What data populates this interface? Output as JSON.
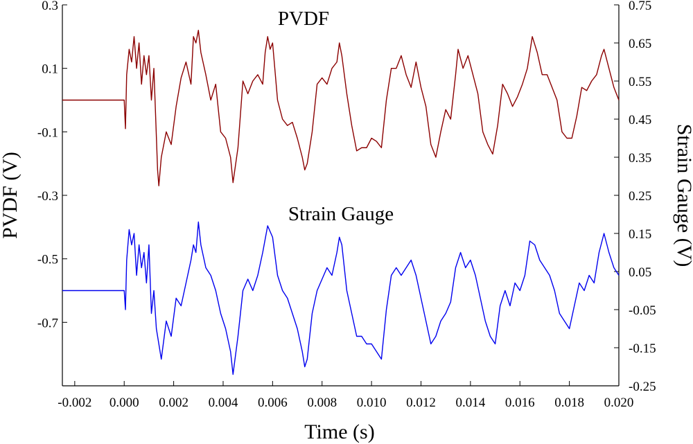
{
  "chart_data": {
    "type": "line",
    "title": "",
    "xlabel": "Time (s)",
    "ylabel_left": "PVDF (V)",
    "ylabel_right": "Strain Gauge (V)",
    "xlim": [
      -0.0025,
      0.02
    ],
    "ylim_left": [
      -0.9,
      0.3
    ],
    "ylim_right": [
      -0.25,
      0.75
    ],
    "x_ticks": [
      -0.002,
      0.0,
      0.002,
      0.004,
      0.006,
      0.008,
      0.01,
      0.012,
      0.014,
      0.016,
      0.018,
      0.02
    ],
    "x_tick_labels": [
      "-0.002",
      "0.000",
      "0.002",
      "0.004",
      "0.006",
      "0.008",
      "0.010",
      "0.012",
      "0.014",
      "0.016",
      "0.018",
      "0.020"
    ],
    "y_left_ticks": [
      0.3,
      0.1,
      -0.1,
      -0.3,
      -0.5,
      -0.7
    ],
    "y_left_tick_labels": [
      "0.3",
      "0.1",
      "-0.1",
      "-0.3",
      "-0.5",
      "-0.7"
    ],
    "y_right_ticks": [
      0.75,
      0.65,
      0.55,
      0.45,
      0.35,
      0.25,
      0.15,
      0.05,
      -0.05,
      -0.15,
      -0.25
    ],
    "y_right_tick_labels": [
      "0.75",
      "0.65",
      "0.55",
      "0.45",
      "0.35",
      "0.25",
      "0.15",
      "0.05",
      "-0.05",
      "-0.15",
      "-0.25"
    ],
    "annotations": [
      "PVDF",
      "Strain Gauge"
    ],
    "series": [
      {
        "name": "PVDF",
        "axis": "left",
        "color": "#8b0000",
        "points": [
          [
            -0.0025,
            0.0
          ],
          [
            0.0,
            0.0
          ],
          [
            5e-05,
            -0.09
          ],
          [
            0.0001,
            0.08
          ],
          [
            0.0002,
            0.16
          ],
          [
            0.0003,
            0.12
          ],
          [
            0.0004,
            0.2
          ],
          [
            0.0005,
            0.1
          ],
          [
            0.0006,
            0.18
          ],
          [
            0.0007,
            0.05
          ],
          [
            0.0008,
            0.14
          ],
          [
            0.0009,
            0.08
          ],
          [
            0.001,
            0.14
          ],
          [
            0.0011,
            0.0
          ],
          [
            0.0012,
            0.1
          ],
          [
            0.00135,
            -0.22
          ],
          [
            0.0014,
            -0.27
          ],
          [
            0.0015,
            -0.18
          ],
          [
            0.0017,
            -0.1
          ],
          [
            0.0019,
            -0.14
          ],
          [
            0.0021,
            -0.02
          ],
          [
            0.0023,
            0.07
          ],
          [
            0.0025,
            0.12
          ],
          [
            0.0027,
            0.05
          ],
          [
            0.0028,
            0.2
          ],
          [
            0.0029,
            0.18
          ],
          [
            0.003,
            0.22
          ],
          [
            0.0031,
            0.15
          ],
          [
            0.0033,
            0.08
          ],
          [
            0.0035,
            0.0
          ],
          [
            0.0037,
            0.05
          ],
          [
            0.0039,
            -0.1
          ],
          [
            0.0041,
            -0.12
          ],
          [
            0.0043,
            -0.18
          ],
          [
            0.0044,
            -0.26
          ],
          [
            0.0046,
            -0.15
          ],
          [
            0.0048,
            0.06
          ],
          [
            0.005,
            0.02
          ],
          [
            0.0052,
            0.06
          ],
          [
            0.0054,
            0.08
          ],
          [
            0.0056,
            0.05
          ],
          [
            0.0057,
            0.15
          ],
          [
            0.0058,
            0.2
          ],
          [
            0.0059,
            0.16
          ],
          [
            0.006,
            0.18
          ],
          [
            0.0062,
            0.0
          ],
          [
            0.0064,
            -0.06
          ],
          [
            0.0066,
            -0.08
          ],
          [
            0.0068,
            -0.07
          ],
          [
            0.007,
            -0.12
          ],
          [
            0.0072,
            -0.18
          ],
          [
            0.0073,
            -0.22
          ],
          [
            0.0074,
            -0.2
          ],
          [
            0.0076,
            -0.1
          ],
          [
            0.0078,
            0.05
          ],
          [
            0.008,
            0.07
          ],
          [
            0.0082,
            0.05
          ],
          [
            0.0084,
            0.1
          ],
          [
            0.0086,
            0.12
          ],
          [
            0.0087,
            0.18
          ],
          [
            0.0088,
            0.14
          ],
          [
            0.009,
            0.02
          ],
          [
            0.0092,
            -0.08
          ],
          [
            0.0094,
            -0.16
          ],
          [
            0.0096,
            -0.15
          ],
          [
            0.0098,
            -0.15
          ],
          [
            0.01,
            -0.12
          ],
          [
            0.0102,
            -0.13
          ],
          [
            0.0104,
            -0.15
          ],
          [
            0.0106,
            0.0
          ],
          [
            0.0108,
            0.1
          ],
          [
            0.011,
            0.1
          ],
          [
            0.0112,
            0.14
          ],
          [
            0.0114,
            0.08
          ],
          [
            0.0116,
            0.04
          ],
          [
            0.0118,
            0.12
          ],
          [
            0.012,
            0.04
          ],
          [
            0.0122,
            -0.02
          ],
          [
            0.0124,
            -0.14
          ],
          [
            0.0126,
            -0.18
          ],
          [
            0.0128,
            -0.1
          ],
          [
            0.013,
            -0.03
          ],
          [
            0.0132,
            -0.06
          ],
          [
            0.0134,
            0.08
          ],
          [
            0.0135,
            0.16
          ],
          [
            0.0137,
            0.1
          ],
          [
            0.0139,
            0.14
          ],
          [
            0.0141,
            0.08
          ],
          [
            0.0143,
            0.02
          ],
          [
            0.0145,
            -0.1
          ],
          [
            0.0147,
            -0.14
          ],
          [
            0.0149,
            -0.17
          ],
          [
            0.0151,
            -0.08
          ],
          [
            0.0153,
            0.05
          ],
          [
            0.0155,
            0.02
          ],
          [
            0.0157,
            -0.02
          ],
          [
            0.0159,
            0.01
          ],
          [
            0.0161,
            0.05
          ],
          [
            0.0163,
            0.1
          ],
          [
            0.0165,
            0.2
          ],
          [
            0.0167,
            0.15
          ],
          [
            0.0169,
            0.08
          ],
          [
            0.0171,
            0.08
          ],
          [
            0.0173,
            0.04
          ],
          [
            0.0175,
            0.0
          ],
          [
            0.0177,
            -0.1
          ],
          [
            0.0179,
            -0.12
          ],
          [
            0.0181,
            -0.12
          ],
          [
            0.0183,
            -0.05
          ],
          [
            0.0185,
            0.04
          ],
          [
            0.0187,
            0.03
          ],
          [
            0.0189,
            0.06
          ],
          [
            0.0191,
            0.08
          ],
          [
            0.0193,
            0.14
          ],
          [
            0.0194,
            0.16
          ],
          [
            0.0196,
            0.1
          ],
          [
            0.0198,
            0.04
          ],
          [
            0.02,
            0.0
          ]
        ]
      },
      {
        "name": "Strain Gauge",
        "axis": "right",
        "color": "#0000ee",
        "points": [
          [
            -0.0025,
            0.0
          ],
          [
            0.0,
            0.0
          ],
          [
            5e-05,
            -0.05
          ],
          [
            0.0001,
            0.08
          ],
          [
            0.0002,
            0.16
          ],
          [
            0.0003,
            0.12
          ],
          [
            0.0004,
            0.15
          ],
          [
            0.0005,
            0.04
          ],
          [
            0.0006,
            0.12
          ],
          [
            0.0007,
            0.06
          ],
          [
            0.0008,
            0.1
          ],
          [
            0.0009,
            0.02
          ],
          [
            0.001,
            0.12
          ],
          [
            0.0011,
            -0.06
          ],
          [
            0.0012,
            0.0
          ],
          [
            0.0013,
            -0.1
          ],
          [
            0.0015,
            -0.18
          ],
          [
            0.0017,
            -0.08
          ],
          [
            0.0019,
            -0.12
          ],
          [
            0.0021,
            -0.02
          ],
          [
            0.0023,
            -0.04
          ],
          [
            0.0025,
            0.02
          ],
          [
            0.0027,
            0.08
          ],
          [
            0.0028,
            0.12
          ],
          [
            0.0029,
            0.1
          ],
          [
            0.003,
            0.18
          ],
          [
            0.0031,
            0.12
          ],
          [
            0.0033,
            0.06
          ],
          [
            0.0035,
            0.04
          ],
          [
            0.0037,
            0.0
          ],
          [
            0.0039,
            -0.06
          ],
          [
            0.0041,
            -0.1
          ],
          [
            0.0043,
            -0.16
          ],
          [
            0.0044,
            -0.22
          ],
          [
            0.0046,
            -0.12
          ],
          [
            0.0048,
            0.0
          ],
          [
            0.005,
            0.03
          ],
          [
            0.0052,
            0.0
          ],
          [
            0.0054,
            0.04
          ],
          [
            0.0056,
            0.1
          ],
          [
            0.0058,
            0.17
          ],
          [
            0.006,
            0.14
          ],
          [
            0.0062,
            0.04
          ],
          [
            0.0064,
            0.0
          ],
          [
            0.0066,
            -0.02
          ],
          [
            0.0068,
            -0.06
          ],
          [
            0.007,
            -0.1
          ],
          [
            0.0072,
            -0.16
          ],
          [
            0.0073,
            -0.2
          ],
          [
            0.0074,
            -0.18
          ],
          [
            0.0076,
            -0.06
          ],
          [
            0.0078,
            0.0
          ],
          [
            0.008,
            0.03
          ],
          [
            0.0082,
            0.06
          ],
          [
            0.0084,
            0.04
          ],
          [
            0.0086,
            0.1
          ],
          [
            0.0087,
            0.14
          ],
          [
            0.0088,
            0.12
          ],
          [
            0.009,
            0.0
          ],
          [
            0.0092,
            -0.06
          ],
          [
            0.0094,
            -0.12
          ],
          [
            0.0096,
            -0.12
          ],
          [
            0.0098,
            -0.14
          ],
          [
            0.01,
            -0.14
          ],
          [
            0.0102,
            -0.16
          ],
          [
            0.0104,
            -0.18
          ],
          [
            0.0106,
            -0.05
          ],
          [
            0.0108,
            0.04
          ],
          [
            0.011,
            0.06
          ],
          [
            0.0112,
            0.04
          ],
          [
            0.0114,
            0.06
          ],
          [
            0.0116,
            0.08
          ],
          [
            0.0118,
            0.04
          ],
          [
            0.012,
            -0.02
          ],
          [
            0.0122,
            -0.08
          ],
          [
            0.0124,
            -0.14
          ],
          [
            0.0126,
            -0.12
          ],
          [
            0.0128,
            -0.08
          ],
          [
            0.013,
            -0.06
          ],
          [
            0.0132,
            -0.03
          ],
          [
            0.0134,
            0.06
          ],
          [
            0.0136,
            0.1
          ],
          [
            0.0138,
            0.06
          ],
          [
            0.014,
            0.08
          ],
          [
            0.0142,
            0.04
          ],
          [
            0.0144,
            -0.02
          ],
          [
            0.0146,
            -0.08
          ],
          [
            0.0148,
            -0.12
          ],
          [
            0.015,
            -0.14
          ],
          [
            0.0152,
            -0.04
          ],
          [
            0.0154,
            0.0
          ],
          [
            0.0156,
            -0.04
          ],
          [
            0.0158,
            0.02
          ],
          [
            0.016,
            0.0
          ],
          [
            0.0162,
            0.04
          ],
          [
            0.0164,
            0.13
          ],
          [
            0.0166,
            0.12
          ],
          [
            0.0168,
            0.08
          ],
          [
            0.017,
            0.06
          ],
          [
            0.0172,
            0.04
          ],
          [
            0.0174,
            0.0
          ],
          [
            0.0176,
            -0.06
          ],
          [
            0.0178,
            -0.08
          ],
          [
            0.018,
            -0.1
          ],
          [
            0.0182,
            -0.04
          ],
          [
            0.0184,
            0.02
          ],
          [
            0.0186,
            0.0
          ],
          [
            0.0188,
            0.04
          ],
          [
            0.019,
            0.02
          ],
          [
            0.0192,
            0.1
          ],
          [
            0.0194,
            0.15
          ],
          [
            0.0196,
            0.1
          ],
          [
            0.0198,
            0.06
          ],
          [
            0.02,
            0.04
          ]
        ]
      }
    ]
  }
}
